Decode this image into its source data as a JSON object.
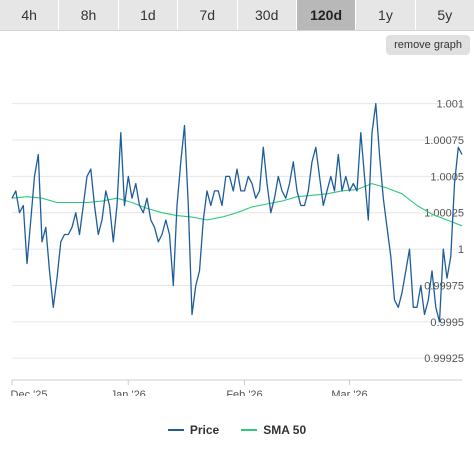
{
  "tabs": [
    {
      "label": "4h",
      "active": false
    },
    {
      "label": "8h",
      "active": false
    },
    {
      "label": "1d",
      "active": false
    },
    {
      "label": "7d",
      "active": false
    },
    {
      "label": "30d",
      "active": false
    },
    {
      "label": "120d",
      "active": true
    },
    {
      "label": "1y",
      "active": false
    },
    {
      "label": "5y",
      "active": false
    }
  ],
  "remove_graph_label": "remove graph",
  "chart_data": {
    "type": "line",
    "y_ticks": [
      1.001,
      1.00075,
      1.0005,
      1.00025,
      1,
      0.99975,
      0.9995,
      0.99925
    ],
    "y_tick_labels": [
      "1.001",
      "1.00075",
      "1.0005",
      "1.00025",
      "1",
      "0.99975",
      "0.9995",
      "0.99925"
    ],
    "ylim": [
      0.9991,
      1.0013
    ],
    "x_ticks": [
      {
        "label": "Dec '25",
        "x": 0
      },
      {
        "label": "Jan '26",
        "x": 31
      },
      {
        "label": "Feb '26",
        "x": 62
      },
      {
        "label": "Mar '26",
        "x": 90
      }
    ],
    "xlim": [
      0,
      120
    ],
    "grid": true,
    "legend_position": "bottom-center",
    "series": [
      {
        "name": "Price",
        "color": "#1f5d99",
        "x": [
          0,
          1,
          2,
          3,
          4,
          5,
          6,
          7,
          8,
          9,
          10,
          11,
          12,
          13,
          14,
          15,
          16,
          17,
          18,
          19,
          20,
          21,
          22,
          23,
          24,
          25,
          26,
          27,
          28,
          29,
          30,
          31,
          32,
          33,
          34,
          35,
          36,
          37,
          38,
          39,
          40,
          41,
          42,
          43,
          44,
          45,
          46,
          47,
          48,
          49,
          50,
          51,
          52,
          53,
          54,
          55,
          56,
          57,
          58,
          59,
          60,
          61,
          62,
          63,
          64,
          65,
          66,
          67,
          68,
          69,
          70,
          71,
          72,
          73,
          74,
          75,
          76,
          77,
          78,
          79,
          80,
          81,
          82,
          83,
          84,
          85,
          86,
          87,
          88,
          89,
          90,
          91,
          92,
          93,
          94,
          95,
          96,
          97,
          98,
          99,
          100,
          101,
          102,
          103,
          104,
          105,
          106,
          107,
          108,
          109,
          110,
          111,
          112,
          113,
          114,
          115,
          116,
          117,
          118,
          119,
          120
        ],
        "values": [
          1.00035,
          1.0004,
          1.00025,
          1.0003,
          0.9999,
          1.0002,
          1.0005,
          1.00065,
          1.00005,
          1.00015,
          0.99985,
          0.9996,
          0.9998,
          1.00005,
          1.0001,
          1.0001,
          1.00015,
          1.00025,
          1.0001,
          1.0003,
          1.0005,
          1.00055,
          1.0003,
          1.0001,
          1.0002,
          1.0004,
          1.0003,
          1.00005,
          1.0003,
          1.0008,
          1.0003,
          1.0005,
          1.00035,
          1.00045,
          1.0003,
          1.00025,
          1.00035,
          1.0002,
          1.00015,
          1.00005,
          1.0001,
          1.0002,
          1.0001,
          0.99975,
          1.0003,
          1.0006,
          1.00085,
          1.0003,
          0.99955,
          0.99975,
          0.99985,
          1.0002,
          1.0004,
          1.0003,
          1.0004,
          1.0004,
          1.0003,
          1.0005,
          1.0005,
          1.0004,
          1.00055,
          1.0004,
          1.0004,
          1.0005,
          1.00045,
          1.00035,
          1.0004,
          1.0007,
          1.00045,
          1.00025,
          1.00035,
          1.0005,
          1.0004,
          1.00035,
          1.00045,
          1.0006,
          1.0004,
          1.0003,
          1.0003,
          1.0004,
          1.0006,
          1.0007,
          1.0005,
          1.0003,
          1.0004,
          1.0005,
          1.0004,
          1.00065,
          1.0004,
          1.0005,
          1.0004,
          1.00045,
          1.0004,
          1.0008,
          1.0005,
          1.0002,
          1.0008,
          1.001,
          1.00065,
          1.00035,
          1.00015,
          0.99995,
          0.99965,
          0.9996,
          0.9997,
          0.99985,
          1.0,
          0.9996,
          0.9996,
          0.99975,
          0.99955,
          0.99965,
          0.99985,
          0.9996,
          0.9995,
          1.0,
          0.9998,
          0.99995,
          1.00045,
          1.0007,
          1.00065
        ]
      },
      {
        "name": "SMA 50",
        "color": "#2fc97a",
        "x": [
          0,
          4,
          8,
          12,
          16,
          20,
          24,
          28,
          32,
          36,
          40,
          44,
          48,
          52,
          56,
          60,
          64,
          68,
          72,
          76,
          80,
          84,
          88,
          92,
          96,
          100,
          104,
          108,
          112,
          116,
          120
        ],
        "values": [
          1.00035,
          1.00036,
          1.00035,
          1.00032,
          1.00032,
          1.00032,
          1.00033,
          1.00035,
          1.00032,
          1.00028,
          1.00025,
          1.00023,
          1.00022,
          1.0002,
          1.00022,
          1.00025,
          1.00029,
          1.00031,
          1.00033,
          1.00036,
          1.00037,
          1.00038,
          1.0004,
          1.00041,
          1.00045,
          1.00042,
          1.00038,
          1.0003,
          1.00024,
          1.0002,
          1.00016
        ]
      }
    ]
  }
}
